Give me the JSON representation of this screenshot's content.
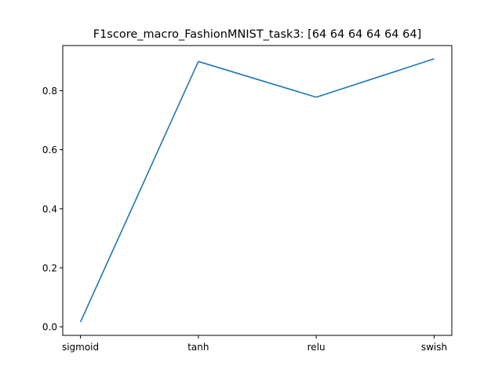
{
  "chart_data": {
    "type": "line",
    "title": "F1score_macro_FashionMNIST_task3: [64 64 64 64 64 64]",
    "xlabel": "",
    "ylabel": "",
    "categories": [
      "sigmoid",
      "tanh",
      "relu",
      "swish"
    ],
    "series": [
      {
        "values": [
          0.016,
          0.899,
          0.778,
          0.908
        ],
        "color": "#1f77b4"
      }
    ],
    "yticks": [
      "0.0",
      "0.2",
      "0.4",
      "0.6",
      "0.8"
    ],
    "ylim": [
      -0.029,
      0.953
    ],
    "grid": false,
    "legend": "none"
  }
}
